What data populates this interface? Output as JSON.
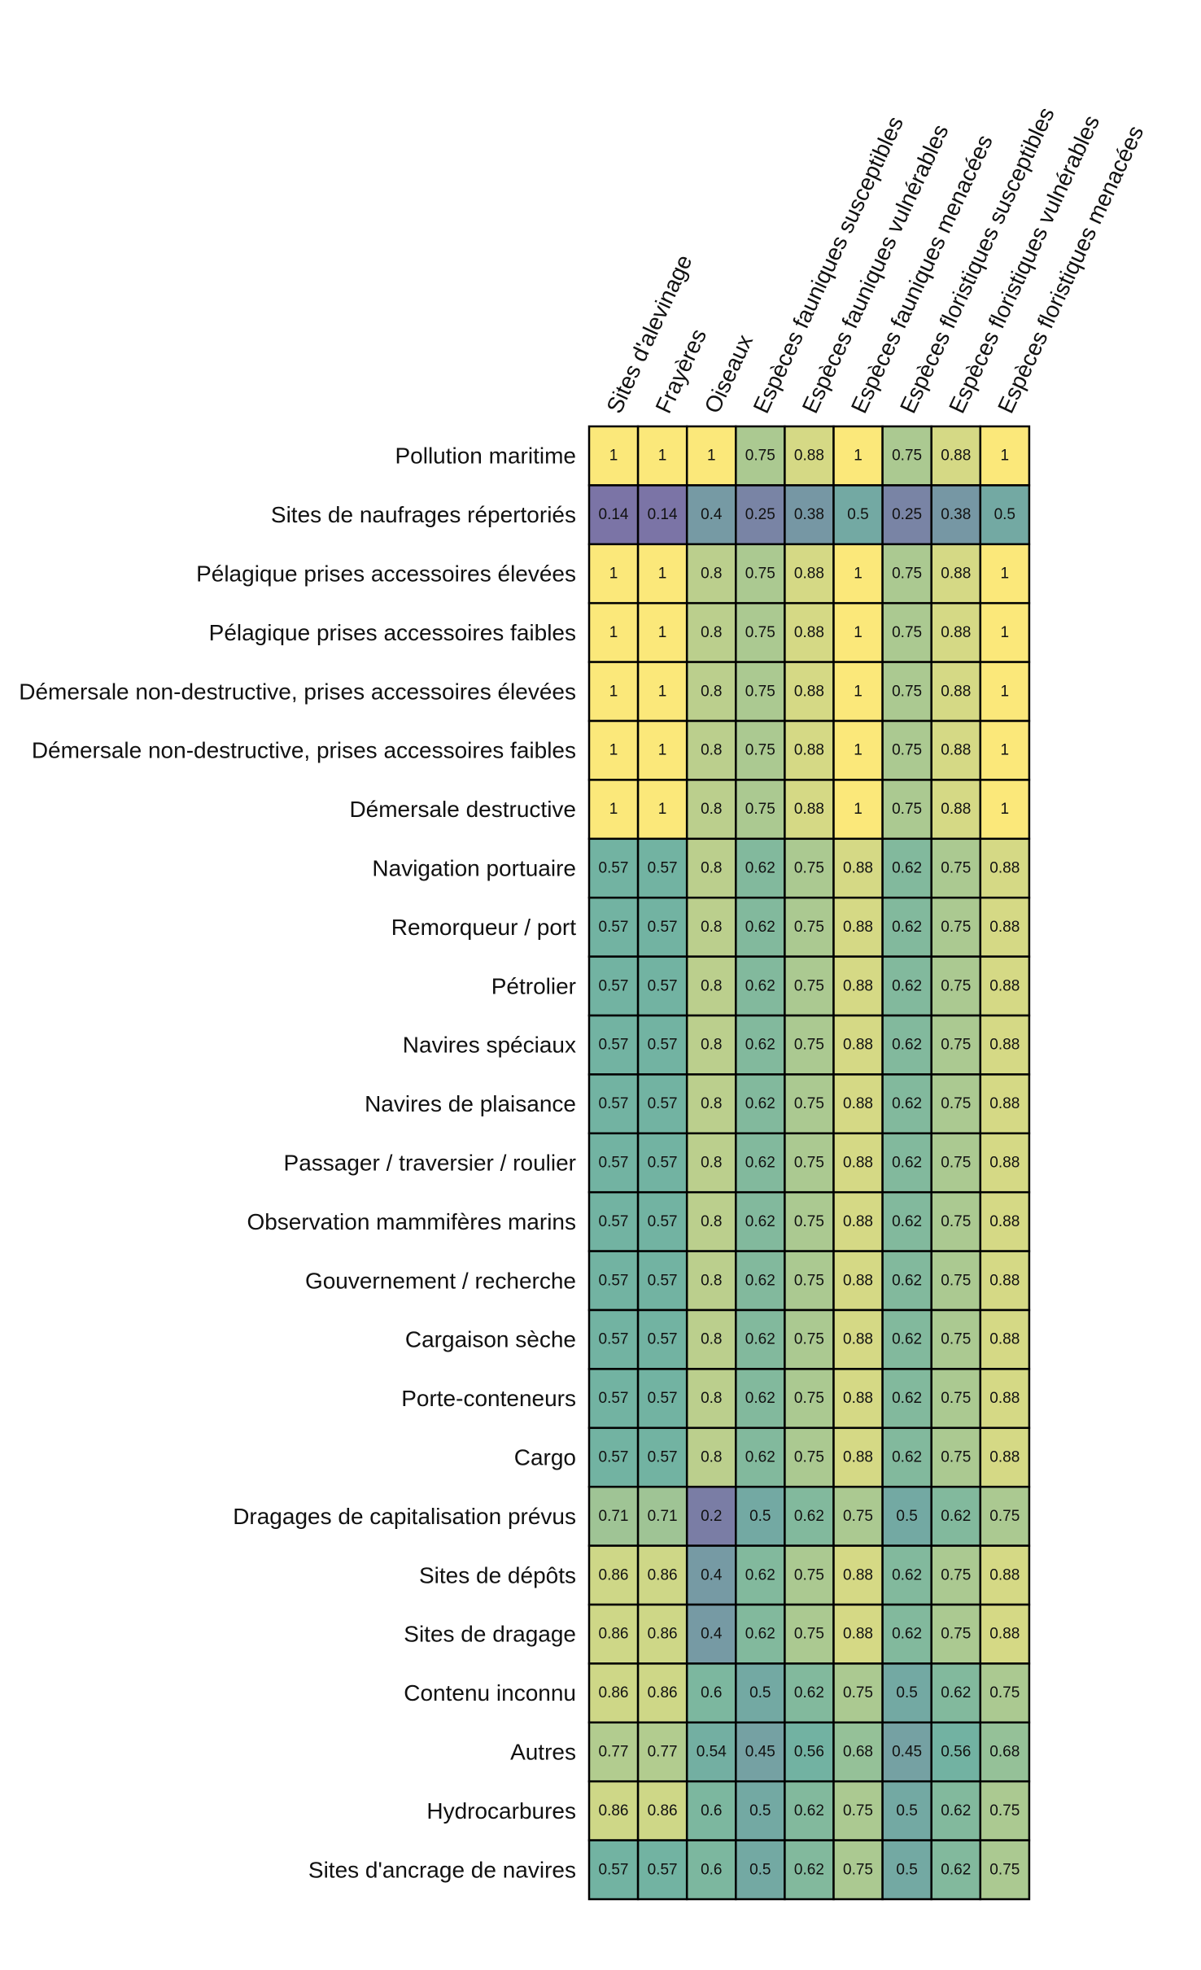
{
  "chart_data": {
    "type": "heatmap",
    "colors": {
      "low": "#7b74a6",
      "mid": "#72b3a2",
      "high": "#fbe87a",
      "grid": "#000000"
    },
    "columns": [
      "Sites d'alevinage",
      "Frayères",
      "Oiseaux",
      "Espèces fauniques susceptibles",
      "Espèces fauniques vulnérables",
      "Espèces fauniques menacées",
      "Espèces floristiques susceptibles",
      "Espèces floristiques vulnérables",
      "Espèces floristiques menacées"
    ],
    "rows": [
      "Pollution maritime",
      "Sites de naufrages répertoriés",
      "Pélagique prises accessoires élevées",
      "Pélagique prises accessoires faibles",
      "Démersale non-destructive, prises accessoires élevées",
      "Démersale non-destructive, prises accessoires faibles",
      "Démersale destructive",
      "Navigation portuaire",
      "Remorqueur / port",
      "Pétrolier",
      "Navires spéciaux",
      "Navires de plaisance",
      "Passager / traversier / roulier",
      "Observation mammifères marins",
      "Gouvernement / recherche",
      "Cargaison sèche",
      "Porte-conteneurs",
      "Cargo",
      "Dragages de capitalisation prévus",
      "Sites de dépôts",
      "Sites de dragage",
      "Contenu inconnu",
      "Autres",
      "Hydrocarbures",
      "Sites d'ancrage de navires"
    ],
    "values": [
      [
        1,
        1,
        1,
        0.75,
        0.88,
        1,
        0.75,
        0.88,
        1
      ],
      [
        0.14,
        0.14,
        0.4,
        0.25,
        0.38,
        0.5,
        0.25,
        0.38,
        0.5
      ],
      [
        1,
        1,
        0.8,
        0.75,
        0.88,
        1,
        0.75,
        0.88,
        1
      ],
      [
        1,
        1,
        0.8,
        0.75,
        0.88,
        1,
        0.75,
        0.88,
        1
      ],
      [
        1,
        1,
        0.8,
        0.75,
        0.88,
        1,
        0.75,
        0.88,
        1
      ],
      [
        1,
        1,
        0.8,
        0.75,
        0.88,
        1,
        0.75,
        0.88,
        1
      ],
      [
        1,
        1,
        0.8,
        0.75,
        0.88,
        1,
        0.75,
        0.88,
        1
      ],
      [
        0.57,
        0.57,
        0.8,
        0.62,
        0.75,
        0.88,
        0.62,
        0.75,
        0.88
      ],
      [
        0.57,
        0.57,
        0.8,
        0.62,
        0.75,
        0.88,
        0.62,
        0.75,
        0.88
      ],
      [
        0.57,
        0.57,
        0.8,
        0.62,
        0.75,
        0.88,
        0.62,
        0.75,
        0.88
      ],
      [
        0.57,
        0.57,
        0.8,
        0.62,
        0.75,
        0.88,
        0.62,
        0.75,
        0.88
      ],
      [
        0.57,
        0.57,
        0.8,
        0.62,
        0.75,
        0.88,
        0.62,
        0.75,
        0.88
      ],
      [
        0.57,
        0.57,
        0.8,
        0.62,
        0.75,
        0.88,
        0.62,
        0.75,
        0.88
      ],
      [
        0.57,
        0.57,
        0.8,
        0.62,
        0.75,
        0.88,
        0.62,
        0.75,
        0.88
      ],
      [
        0.57,
        0.57,
        0.8,
        0.62,
        0.75,
        0.88,
        0.62,
        0.75,
        0.88
      ],
      [
        0.57,
        0.57,
        0.8,
        0.62,
        0.75,
        0.88,
        0.62,
        0.75,
        0.88
      ],
      [
        0.57,
        0.57,
        0.8,
        0.62,
        0.75,
        0.88,
        0.62,
        0.75,
        0.88
      ],
      [
        0.57,
        0.57,
        0.8,
        0.62,
        0.75,
        0.88,
        0.62,
        0.75,
        0.88
      ],
      [
        0.71,
        0.71,
        0.2,
        0.5,
        0.62,
        0.75,
        0.5,
        0.62,
        0.75
      ],
      [
        0.86,
        0.86,
        0.4,
        0.62,
        0.75,
        0.88,
        0.62,
        0.75,
        0.88
      ],
      [
        0.86,
        0.86,
        0.4,
        0.62,
        0.75,
        0.88,
        0.62,
        0.75,
        0.88
      ],
      [
        0.86,
        0.86,
        0.6,
        0.5,
        0.62,
        0.75,
        0.5,
        0.62,
        0.75
      ],
      [
        0.77,
        0.77,
        0.54,
        0.45,
        0.56,
        0.68,
        0.45,
        0.56,
        0.68
      ],
      [
        0.86,
        0.86,
        0.6,
        0.5,
        0.62,
        0.75,
        0.5,
        0.62,
        0.75
      ],
      [
        0.57,
        0.57,
        0.6,
        0.5,
        0.62,
        0.75,
        0.5,
        0.62,
        0.75
      ]
    ]
  }
}
